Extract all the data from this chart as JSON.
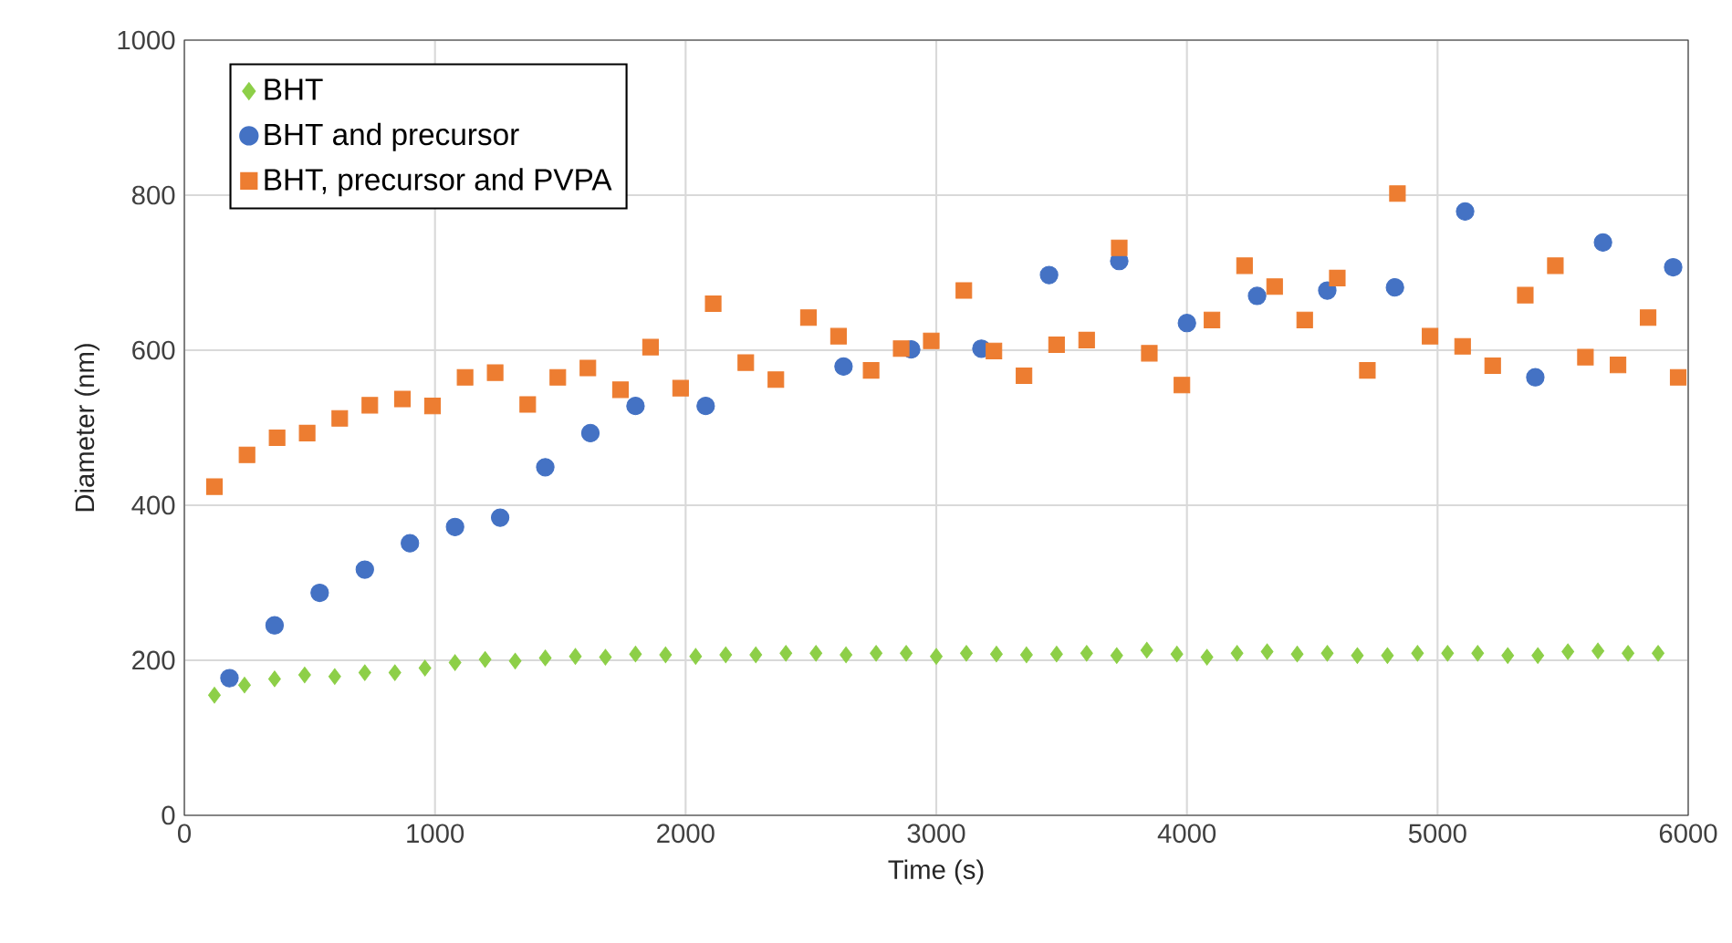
{
  "chart_data": {
    "type": "scatter",
    "xlabel": "Time (s)",
    "ylabel": "Diameter (nm)",
    "xlim": [
      0,
      6000
    ],
    "xticks": [
      0,
      1000,
      2000,
      3000,
      4000,
      5000,
      6000
    ],
    "ylim": [
      0,
      1000
    ],
    "yticks": [
      0,
      200,
      400,
      600,
      800,
      1000
    ],
    "grid": true,
    "legend": "top left",
    "series": [
      {
        "name": "BHT",
        "color": "#8dcf48",
        "marker": "diamond",
        "x": [
          120,
          240,
          360,
          480,
          600,
          720,
          840,
          960,
          1080,
          1200,
          1320,
          1440,
          1560,
          1680,
          1800,
          1920,
          2040,
          2160,
          2280,
          2400,
          2520,
          2640,
          2760,
          2880,
          3000,
          3120,
          3240,
          3360,
          3480,
          3600,
          3720,
          3840,
          3960,
          4080,
          4200,
          4320,
          4440,
          4560,
          4680,
          4800,
          4920,
          5040,
          5160,
          5280,
          5400,
          5520,
          5640,
          5760,
          5880
        ],
        "values": [
          155,
          168,
          176,
          181,
          179,
          184,
          184,
          190,
          197,
          201,
          199,
          203,
          205,
          204,
          208,
          207,
          205,
          207,
          207,
          209,
          209,
          207,
          209,
          209,
          205,
          209,
          208,
          207,
          208,
          209,
          206,
          213,
          208,
          204,
          209,
          211,
          208,
          209,
          206,
          206,
          209,
          209,
          209,
          206,
          206,
          211,
          212,
          209,
          209
        ]
      },
      {
        "name": "BHT and precursor",
        "color": "#4472c4",
        "marker": "circle",
        "x": [
          180,
          360,
          540,
          720,
          900,
          1080,
          1260,
          1440,
          1620,
          1800,
          2080,
          2360,
          2630,
          2900,
          3180,
          3450,
          3730,
          4000,
          4280,
          4560,
          4830,
          5110,
          5390,
          5660,
          5940
        ],
        "values": [
          177,
          245,
          287,
          317,
          351,
          372,
          384,
          449,
          493,
          528,
          528,
          null,
          579,
          601,
          602,
          697,
          715,
          635,
          670,
          677,
          681,
          779,
          565,
          739,
          707
        ]
      },
      {
        "name": "BHT, precursor and PVPA",
        "color": "#ed7d31",
        "marker": "square",
        "x": [
          120,
          250,
          370,
          490,
          620,
          740,
          870,
          990,
          1120,
          1240,
          1370,
          1490,
          1610,
          1740,
          1860,
          1980,
          2110,
          2240,
          2360,
          2490,
          2610,
          2740,
          2860,
          2980,
          3110,
          3230,
          3350,
          3480,
          3600,
          3730,
          3850,
          3980,
          4100,
          4230,
          4350,
          4470,
          4600,
          4720,
          4840,
          4970,
          5100,
          5220,
          5350,
          5470,
          5590,
          5720,
          5840,
          5960
        ],
        "values": [
          424,
          465,
          487,
          493,
          512,
          529,
          537,
          528,
          565,
          571,
          530,
          565,
          577,
          549,
          604,
          551,
          660,
          584,
          562,
          642,
          618,
          574,
          602,
          612,
          677,
          599,
          567,
          607,
          613,
          732,
          596,
          555,
          639,
          709,
          682,
          639,
          693,
          574,
          802,
          618,
          605,
          580,
          671,
          709,
          591,
          581,
          642,
          565
        ]
      }
    ]
  }
}
